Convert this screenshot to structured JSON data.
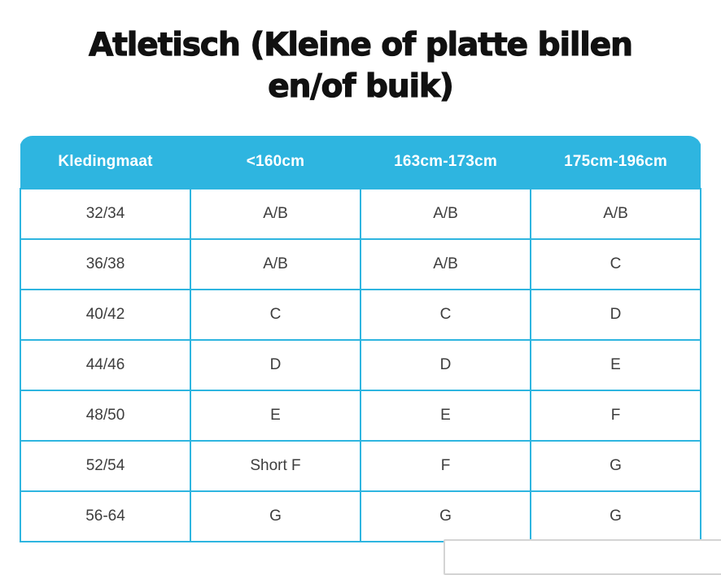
{
  "page": {
    "title_line1": "Atletisch (Kleine of platte billen",
    "title_line2": "en/of buik)"
  },
  "table": {
    "columns": [
      "Kledingmaat",
      "<160cm",
      "163cm-173cm",
      "175cm-196cm"
    ],
    "rows": [
      {
        "size": "32/34",
        "values": [
          "A/B",
          "A/B",
          "A/B"
        ]
      },
      {
        "size": "36/38",
        "values": [
          "A/B",
          "A/B",
          "C"
        ]
      },
      {
        "size": "40/42",
        "values": [
          "C",
          "C",
          "D"
        ]
      },
      {
        "size": "44/46",
        "values": [
          "D",
          "D",
          "E"
        ]
      },
      {
        "size": "48/50",
        "values": [
          "E",
          "E",
          "F"
        ]
      },
      {
        "size": "52/54",
        "values": [
          "Short F",
          "F",
          "G"
        ]
      },
      {
        "size": "56-64",
        "values": [
          "G",
          "G",
          "G"
        ]
      }
    ]
  },
  "colors": {
    "accent": "#2eb5e0",
    "header_text": "#ffffff",
    "cell_text": "#3d3d3d",
    "title_text": "#111111",
    "overlay_border": "#d4d4d4"
  }
}
